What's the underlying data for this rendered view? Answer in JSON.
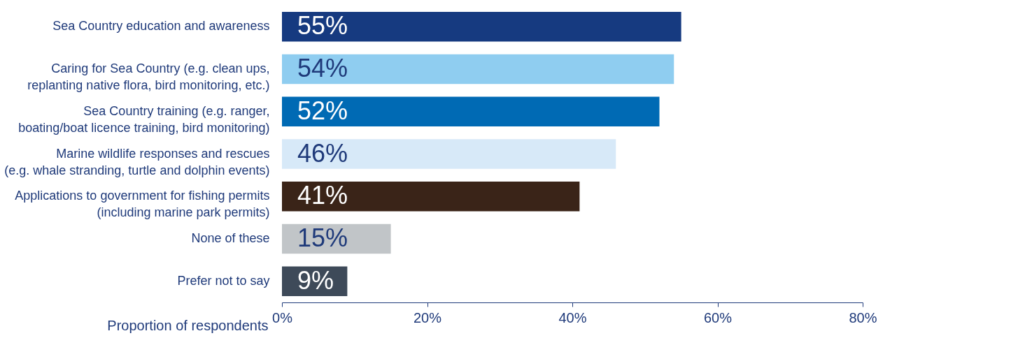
{
  "chart_data": {
    "type": "bar",
    "orientation": "horizontal",
    "categories": [
      "Sea Country education and awareness",
      "Caring for Sea Country (e.g. clean ups,\nreplanting native flora, bird monitoring, etc.)",
      "Sea Country training (e.g. ranger,\nboating/boat licence training, bird monitoring)",
      "Marine wildlife responses and rescues\n(e.g. whale stranding, turtle and dolphin events)",
      "Applications to government for fishing permits\n(including marine park permits)",
      "None of these",
      "Prefer not to say"
    ],
    "values": [
      55,
      54,
      52,
      46,
      41,
      15,
      9
    ],
    "colors": [
      "#163a80",
      "#8fcdf0",
      "#006ab4",
      "#d7e9f8",
      "#3a2418",
      "#c1c5c8",
      "#3e4a59"
    ],
    "value_labels": [
      "55%",
      "54%",
      "52%",
      "46%",
      "41%",
      "15%",
      "9%"
    ],
    "xlabel": "Proportion of respondents",
    "xlim": [
      0,
      80
    ],
    "xticks": [
      {
        "value": 0,
        "label": "0%"
      },
      {
        "value": 20,
        "label": "20%"
      },
      {
        "value": 40,
        "label": "40%"
      },
      {
        "value": 60,
        "label": "60%"
      },
      {
        "value": 80,
        "label": "80%"
      }
    ],
    "grid": false
  }
}
